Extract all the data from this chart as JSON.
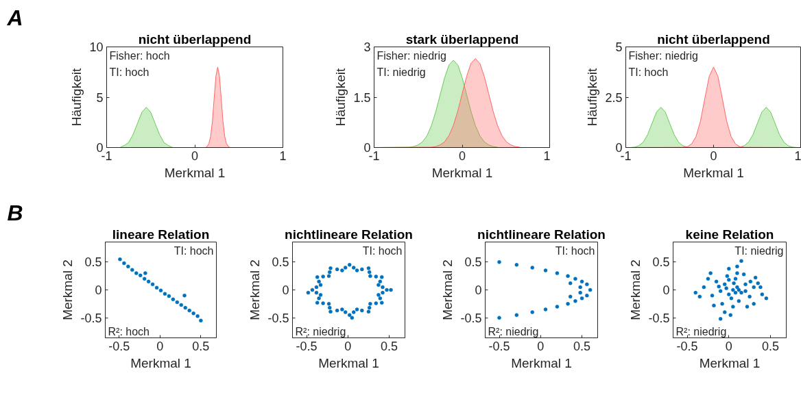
{
  "chart_data": [
    {
      "type": "area",
      "title": "nicht überlappend",
      "xlabel": "Merkmal 1",
      "ylabel": "Häufigkeit",
      "xlim": [
        -1,
        1
      ],
      "xticks": [
        -1,
        0,
        1
      ],
      "ylim": [
        0,
        10
      ],
      "yticks": [
        0,
        5,
        10
      ],
      "annotations": [
        "A",
        "Fisher: hoch",
        "TI: hoch"
      ],
      "series": [
        {
          "color": "#66cc55",
          "x": [
            -1,
            -0.9,
            -0.85,
            -0.8,
            -0.75,
            -0.7,
            -0.65,
            -0.6,
            -0.55,
            -0.5,
            -0.45,
            -0.4,
            -0.35,
            -0.3,
            -0.25,
            -0.2,
            1
          ],
          "values": [
            0,
            0,
            0,
            0.2,
            0.5,
            1.3,
            2.4,
            3.5,
            4,
            3.5,
            2.4,
            1.3,
            0.5,
            0.2,
            0,
            0,
            0
          ]
        },
        {
          "color": "#ff6666",
          "x": [
            -1,
            0.12,
            0.14,
            0.16,
            0.18,
            0.2,
            0.22,
            0.24,
            0.26,
            0.28,
            0.3,
            0.32,
            0.34,
            0.36,
            0.38,
            0.4,
            1
          ],
          "values": [
            0,
            0,
            0.1,
            0.4,
            1.1,
            2.6,
            4.9,
            7.1,
            8,
            7.1,
            4.9,
            2.6,
            1.1,
            0.4,
            0.1,
            0,
            0
          ]
        }
      ]
    },
    {
      "type": "area",
      "title": "stark überlappend",
      "xlabel": "Merkmal 1",
      "ylabel": "Häufigkeit",
      "xlim": [
        -1,
        1
      ],
      "xticks": [
        -1,
        0,
        1
      ],
      "ylim": [
        0,
        3
      ],
      "yticks": [
        0,
        1.5,
        3
      ],
      "annotations": [
        "Fisher: niedrig",
        "TI: niedrig"
      ],
      "series": [
        {
          "color": "#66cc55",
          "x": [
            -1,
            -0.6,
            -0.55,
            -0.5,
            -0.45,
            -0.4,
            -0.35,
            -0.3,
            -0.25,
            -0.2,
            -0.15,
            -0.1,
            -0.05,
            0,
            0.05,
            0.1,
            0.15,
            0.2,
            0.25,
            0.3,
            0.35,
            0.4
          ],
          "values": [
            0,
            0.01,
            0.03,
            0.08,
            0.17,
            0.35,
            0.65,
            1.07,
            1.58,
            2.08,
            2.46,
            2.6,
            2.46,
            2.08,
            1.58,
            1.07,
            0.65,
            0.35,
            0.17,
            0.08,
            0.03,
            0.01
          ]
        },
        {
          "color": "#ff6666",
          "x": [
            -1,
            -0.35,
            -0.3,
            -0.25,
            -0.2,
            -0.15,
            -0.1,
            -0.05,
            0,
            0.05,
            0.1,
            0.15,
            0.2,
            0.25,
            0.3,
            0.35,
            0.4,
            0.45,
            0.5,
            0.55,
            0.6,
            0.65
          ],
          "values": [
            0,
            0.01,
            0.03,
            0.08,
            0.17,
            0.36,
            0.66,
            1.09,
            1.61,
            2.12,
            2.51,
            2.65,
            2.51,
            2.12,
            1.61,
            1.09,
            0.66,
            0.36,
            0.17,
            0.08,
            0.03,
            0.01
          ]
        }
      ]
    },
    {
      "type": "area",
      "title": "nicht überlappend",
      "xlabel": "Merkmal 1",
      "ylabel": "Häufigkeit",
      "xlim": [
        -1,
        1
      ],
      "xticks": [
        -1,
        0,
        1
      ],
      "ylim": [
        0,
        5
      ],
      "yticks": [
        0,
        2.5,
        5
      ],
      "annotations": [
        "Fisher: niedrig",
        "TI: hoch"
      ],
      "series": [
        {
          "color": "#66cc55",
          "x": [
            -1,
            -0.95,
            -0.9,
            -0.85,
            -0.8,
            -0.75,
            -0.7,
            -0.65,
            -0.6,
            -0.55,
            -0.5,
            -0.45,
            -0.4,
            -0.35,
            -0.3,
            -0.25,
            -0.2,
            -0.15,
            -0.1,
            -0.05,
            0,
            0.05,
            0.1,
            0.15,
            0.2,
            0.25,
            0.3,
            0.35,
            0.4,
            0.45,
            0.5,
            0.55,
            0.6,
            0.65,
            0.7,
            0.75,
            0.8,
            0.85,
            0.9,
            0.95,
            1
          ],
          "values": [
            0,
            0,
            0.02,
            0.09,
            0.27,
            0.65,
            1.21,
            1.76,
            2,
            1.76,
            1.21,
            0.65,
            0.27,
            0.09,
            0.02,
            0,
            0,
            0,
            0,
            0,
            0,
            0,
            0,
            0,
            0,
            0,
            0.02,
            0.09,
            0.27,
            0.65,
            1.21,
            1.76,
            2,
            1.76,
            1.21,
            0.65,
            0.27,
            0.09,
            0.02,
            0,
            0
          ]
        },
        {
          "color": "#ff6666",
          "x": [
            -1,
            -0.35,
            -0.3,
            -0.25,
            -0.2,
            -0.15,
            -0.1,
            -0.05,
            0,
            0.05,
            0.1,
            0.15,
            0.2,
            0.25,
            0.3,
            0.35,
            1
          ],
          "values": [
            0,
            0.01,
            0.04,
            0.18,
            0.54,
            1.3,
            2.43,
            3.53,
            4,
            3.53,
            2.43,
            1.3,
            0.54,
            0.18,
            0.04,
            0.01,
            0
          ]
        }
      ]
    },
    {
      "type": "scatter",
      "title": "lineare Relation",
      "xlabel": "Merkmal 1",
      "ylabel": "Merkmal 2",
      "xlim": [
        -0.67,
        0.69
      ],
      "xticks": [
        -0.5,
        0,
        0.5
      ],
      "ylim": [
        -0.86,
        0.86
      ],
      "yticks": [
        -0.5,
        0,
        0.5
      ],
      "marker": "circle",
      "annotations": [
        "B",
        "TI: hoch",
        "R²: hoch"
      ],
      "series": [
        {
          "color": "#0072bd",
          "x": [
            -0.49,
            -0.44,
            -0.39,
            -0.34,
            -0.29,
            -0.24,
            -0.19,
            -0.14,
            -0.09,
            -0.04,
            0.01,
            0.06,
            0.11,
            0.16,
            0.21,
            0.26,
            0.31,
            0.36,
            0.41,
            0.46,
            0.5,
            -0.18,
            0.3
          ],
          "values": [
            0.55,
            0.48,
            0.42,
            0.36,
            0.3,
            0.26,
            0.2,
            0.15,
            0.1,
            0.04,
            -0.01,
            -0.07,
            -0.11,
            -0.17,
            -0.22,
            -0.27,
            -0.32,
            -0.37,
            -0.42,
            -0.47,
            -0.55,
            0.3,
            -0.1
          ]
        }
      ]
    },
    {
      "type": "scatter",
      "title": "nichtlineare Relation",
      "xlabel": "Merkmal 1",
      "ylabel": "Merkmal 2",
      "xlim": [
        -0.67,
        0.69
      ],
      "xticks": [
        -0.5,
        0,
        0.5
      ],
      "ylim": [
        -0.86,
        0.86
      ],
      "yticks": [
        -0.5,
        0,
        0.5
      ],
      "marker": "circle",
      "annotations": [
        "TI: hoch",
        "R²: niedrig"
      ],
      "series": [
        {
          "color": "#0072bd",
          "x": [
            0.47,
            0.37,
            0.41,
            0.27,
            0.25,
            0.11,
            0.02,
            -0.07,
            -0.21,
            -0.23,
            -0.37,
            -0.33,
            -0.43,
            -0.33,
            -0.37,
            -0.23,
            -0.21,
            -0.07,
            0.02,
            0.11,
            0.25,
            0.27,
            0.41,
            0.37,
            0.42,
            0.39,
            0.34,
            0.26,
            0.17,
            0.07,
            -0.03,
            -0.13,
            -0.22,
            -0.3,
            -0.35,
            -0.38,
            -0.38,
            -0.35,
            -0.3,
            -0.22,
            -0.13,
            -0.03,
            0.07,
            0.17,
            0.26,
            0.34,
            0.39,
            0.42,
            -0.48,
            0.52,
            0.05
          ],
          "values": [
            0,
            0.09,
            0.23,
            0.25,
            0.39,
            0.35,
            0.45,
            0.35,
            0.39,
            0.25,
            0.23,
            0.09,
            0,
            -0.09,
            -0.23,
            -0.25,
            -0.39,
            -0.35,
            -0.45,
            -0.35,
            -0.39,
            -0.25,
            -0.23,
            -0.09,
            0.05,
            0.15,
            0.24,
            0.32,
            0.37,
            0.4,
            0.4,
            0.37,
            0.32,
            0.24,
            0.15,
            0.05,
            -0.05,
            -0.15,
            -0.24,
            -0.32,
            -0.37,
            -0.4,
            -0.4,
            -0.37,
            -0.32,
            -0.24,
            -0.15,
            -0.05,
            -0.05,
            0,
            -0.5
          ]
        }
      ]
    },
    {
      "type": "scatter",
      "title": "nichtlineare Relation",
      "xlabel": "Merkmal 1",
      "ylabel": "Merkmal 2",
      "xlim": [
        -0.67,
        0.69
      ],
      "xticks": [
        -0.5,
        0,
        0.5
      ],
      "ylim": [
        -0.86,
        0.86
      ],
      "yticks": [
        -0.5,
        0,
        0.5
      ],
      "marker": "circle",
      "annotations": [
        "TI: hoch",
        "R²: niedrig"
      ],
      "series": [
        {
          "color": "#0072bd",
          "x": [
            -0.5,
            -0.29,
            -0.1,
            0.06,
            0.2,
            0.33,
            0.42,
            0.5,
            0.56,
            0.6,
            0.56,
            0.5,
            0.42,
            0.33,
            0.2,
            0.06,
            -0.1,
            -0.29,
            -0.5,
            0.48,
            0.48,
            0.36,
            0.36
          ],
          "values": [
            0.5,
            0.45,
            0.4,
            0.35,
            0.3,
            0.25,
            0.2,
            0.15,
            0.1,
            0,
            -0.1,
            -0.15,
            -0.2,
            -0.25,
            -0.3,
            -0.35,
            -0.4,
            -0.45,
            -0.5,
            0.05,
            -0.05,
            0.12,
            -0.12
          ]
        }
      ]
    },
    {
      "type": "scatter",
      "title": "keine Relation",
      "xlabel": "Merkmal 1",
      "ylabel": "Merkmal 2",
      "xlim": [
        -0.67,
        0.69
      ],
      "xticks": [
        -0.5,
        0,
        0.5
      ],
      "ylim": [
        -0.86,
        0.86
      ],
      "yticks": [
        -0.5,
        0,
        0.5
      ],
      "marker": "circle",
      "annotations": [
        "TI: niedrig",
        "R²: niedrig"
      ],
      "series": [
        {
          "color": "#0072bd",
          "x": [
            0.05,
            0.1,
            -0.05,
            0,
            0.15,
            -0.1,
            0.2,
            0.08,
            -0.02,
            0.12,
            -0.15,
            0.25,
            -0.2,
            0.3,
            0.05,
            -0.08,
            0.18,
            0,
            0.1,
            0.15,
            -0.05,
            -0.1,
            0.02,
            0.35,
            0.4,
            0.45,
            -0.3,
            -0.35,
            -0.4,
            -0.25,
            0.3,
            0.22,
            -0.18,
            0.32,
            0.38,
            0.06,
            0.03,
            -0.03,
            0.12,
            0.08,
            -0.12,
            0.2,
            0.26,
            -0.22,
            0.1,
            0
          ],
          "values": [
            0,
            0.05,
            0.1,
            -0.08,
            -0.05,
            -0.02,
            0.1,
            0.2,
            0.25,
            -0.2,
            0.15,
            -0.12,
            -0.1,
            0.05,
            -0.3,
            -0.25,
            0.28,
            0.38,
            0.42,
            0.52,
            -0.4,
            -0.52,
            -0.45,
            0.12,
            -0.08,
            -0.15,
            0.05,
            -0.12,
            -0.05,
            0.2,
            -0.25,
            -0.3,
            -0.28,
            0.22,
            0.05,
            0.12,
            -0.15,
            0.03,
            0,
            -0.05,
            0.06,
            -0.02,
            0.15,
            0.3,
            0.3,
            0.18
          ]
        }
      ]
    }
  ]
}
